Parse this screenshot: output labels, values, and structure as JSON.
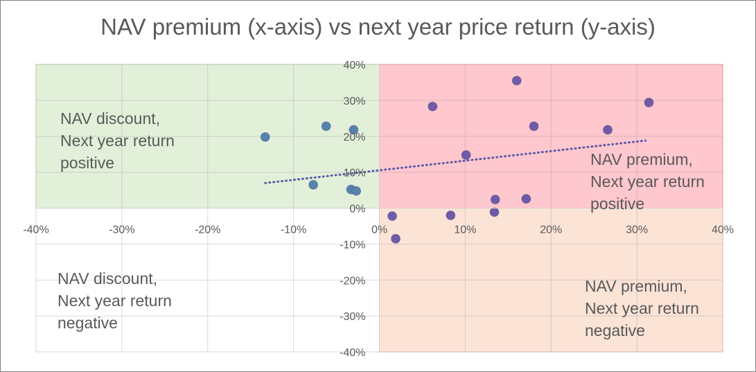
{
  "chart_data": {
    "type": "scatter",
    "title": "NAV premium (x-axis) vs next year price return (y-axis)",
    "xlabel": "",
    "ylabel": "",
    "xlim": [
      -0.4,
      0.4
    ],
    "ylim": [
      -0.4,
      0.4
    ],
    "x_ticks": [
      "-40%",
      "-30%",
      "-20%",
      "-10%",
      "0%",
      "10%",
      "20%",
      "30%",
      "40%"
    ],
    "y_ticks": [
      "40%",
      "30%",
      "20%",
      "10%",
      "0%",
      "-10%",
      "-20%",
      "-30%",
      "-40%"
    ],
    "grid": true,
    "legend": "none",
    "quadrants": [
      {
        "name": "discount-positive",
        "label": "NAV discount,\nNext year return\npositive",
        "color": "#e2f0d9"
      },
      {
        "name": "premium-positive",
        "label": "NAV premium,\nNext year return\npositive",
        "color": "#ffc7ce"
      },
      {
        "name": "discount-negative",
        "label": "NAV discount,\nNext year return\nnegative",
        "color": "#ffffff"
      },
      {
        "name": "premium-negative",
        "label": "NAV premium,\nNext year return\nnegative",
        "color": "#fbe3d6"
      }
    ],
    "series": [
      {
        "color": "#5682ad",
        "points": [
          {
            "x": -0.133,
            "y": 0.198
          },
          {
            "x": -0.062,
            "y": 0.228
          },
          {
            "x": -0.077,
            "y": 0.065
          },
          {
            "x": -0.03,
            "y": 0.218
          },
          {
            "x": -0.033,
            "y": 0.052
          },
          {
            "x": -0.027,
            "y": 0.048
          }
        ]
      },
      {
        "color": "#6f5ba8",
        "points": [
          {
            "x": 0.062,
            "y": 0.283
          },
          {
            "x": 0.16,
            "y": 0.355
          },
          {
            "x": 0.18,
            "y": 0.228
          },
          {
            "x": 0.266,
            "y": 0.218
          },
          {
            "x": 0.314,
            "y": 0.294
          },
          {
            "x": 0.101,
            "y": 0.148
          },
          {
            "x": 0.135,
            "y": 0.024
          },
          {
            "x": 0.171,
            "y": 0.026
          },
          {
            "x": 0.134,
            "y": -0.011
          },
          {
            "x": 0.083,
            "y": -0.02
          },
          {
            "x": 0.015,
            "y": -0.022
          },
          {
            "x": 0.019,
            "y": -0.085
          }
        ]
      }
    ],
    "trendline": {
      "style": "dotted",
      "color": "#5a5aa8",
      "from": {
        "x": -0.133,
        "y": 0.07
      },
      "to": {
        "x": 0.31,
        "y": 0.188
      }
    }
  }
}
